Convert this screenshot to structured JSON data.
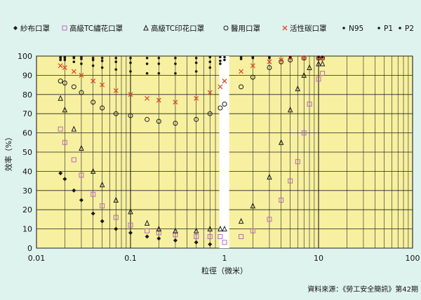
{
  "chart_data": {
    "type": "scatter",
    "x_scale": "log",
    "xlim": [
      0.01,
      100
    ],
    "ylim": [
      0,
      100
    ],
    "xlabel": "粒徑（微米）",
    "ylabel": "效率（%）",
    "x_ticks": [
      "0.01",
      "0.1",
      "1",
      "10",
      "100"
    ],
    "y_ticks": [
      "0",
      "10",
      "20",
      "30",
      "40",
      "50",
      "60",
      "70",
      "80",
      "90",
      "100"
    ],
    "grid": true,
    "legend_placement": "top",
    "source_note": "資料來源：《勞工安全簡訊》第42期",
    "series": [
      {
        "name": "紗布口罩",
        "marker": "diamond",
        "color": "#1a1a1a",
        "x": [
          0.018,
          0.02,
          0.025,
          0.03,
          0.04,
          0.05,
          0.07,
          0.1,
          0.15,
          0.2,
          0.3,
          0.5,
          0.7
        ],
        "y": [
          39,
          36,
          30,
          25,
          18,
          14,
          10,
          8,
          6,
          5,
          4,
          3,
          2
        ]
      },
      {
        "name": "高級TC繡花口罩",
        "marker": "square",
        "color": "#b86ab8",
        "x": [
          0.018,
          0.02,
          0.025,
          0.03,
          0.04,
          0.05,
          0.07,
          0.1,
          0.15,
          0.2,
          0.3,
          0.5,
          0.7,
          0.9,
          1.0,
          1.5,
          2,
          3,
          4,
          5,
          6,
          7,
          8,
          10,
          11
        ],
        "y": [
          62,
          55,
          46,
          38,
          28,
          22,
          16,
          12,
          9,
          8,
          7,
          6,
          6,
          6,
          3,
          6,
          9,
          15,
          25,
          35,
          45,
          60,
          75,
          88,
          91
        ]
      },
      {
        "name": "高級TC印花口罩",
        "marker": "triangle",
        "color": "#1a1a1a",
        "x": [
          0.018,
          0.02,
          0.025,
          0.03,
          0.04,
          0.05,
          0.07,
          0.1,
          0.15,
          0.2,
          0.3,
          0.5,
          0.7,
          0.9,
          1.0,
          1.5,
          2,
          3,
          4,
          5,
          6,
          7,
          8,
          10,
          11
        ],
        "y": [
          78,
          72,
          62,
          52,
          40,
          33,
          25,
          19,
          13,
          10,
          9,
          9,
          10,
          10,
          10,
          14,
          22,
          37,
          55,
          72,
          83,
          90,
          94,
          96,
          96
        ]
      },
      {
        "name": "醫用口罩",
        "marker": "circle",
        "color": "#1a1a1a",
        "x": [
          0.018,
          0.02,
          0.025,
          0.03,
          0.04,
          0.05,
          0.07,
          0.1,
          0.15,
          0.2,
          0.3,
          0.5,
          0.7,
          0.9,
          1.0,
          1.5,
          2,
          3,
          4,
          5,
          7,
          10,
          11
        ],
        "y": [
          87,
          86,
          84,
          81,
          76,
          73,
          70,
          69,
          67,
          66,
          65,
          67,
          70,
          73,
          75,
          84,
          89,
          94,
          97,
          98,
          99,
          99,
          99
        ]
      },
      {
        "name": "活性碳口罩",
        "marker": "cross",
        "color": "#e04a2a",
        "x": [
          0.018,
          0.02,
          0.025,
          0.03,
          0.04,
          0.05,
          0.07,
          0.1,
          0.15,
          0.2,
          0.3,
          0.5,
          0.7,
          0.9,
          1.0,
          1.5,
          2,
          3,
          4,
          5,
          7,
          10,
          11
        ],
        "y": [
          95,
          94,
          92,
          90,
          87,
          85,
          82,
          80,
          78,
          77,
          76,
          78,
          81,
          84,
          87,
          92,
          95,
          97,
          98,
          99,
          99,
          99,
          99
        ]
      },
      {
        "name": "N95",
        "marker": "dot",
        "color": "#1a1a1a",
        "x": [
          0.018,
          0.02,
          0.025,
          0.03,
          0.04,
          0.05,
          0.07,
          0.1,
          0.15,
          0.2,
          0.3,
          0.5,
          0.7,
          0.9,
          1.0,
          1.5,
          2,
          3,
          5,
          10,
          11
        ],
        "y": [
          99,
          99,
          99,
          98.5,
          98,
          97.5,
          97,
          96.5,
          96,
          96,
          96,
          96.5,
          97,
          97.5,
          98,
          98.5,
          99,
          99,
          99.5,
          99.5,
          99.5
        ]
      },
      {
        "name": "P1",
        "marker": "dot",
        "color": "#1a1a1a",
        "x": [
          0.018,
          0.02,
          0.025,
          0.03,
          0.04,
          0.05,
          0.07,
          0.1,
          0.15,
          0.2,
          0.3,
          0.5,
          0.7,
          0.9
        ],
        "y": [
          98,
          98,
          97,
          96,
          95,
          94,
          93,
          92,
          91,
          91,
          91,
          92,
          94,
          96
        ]
      },
      {
        "name": "P2",
        "marker": "dot",
        "color": "#1a1a1a",
        "x": [
          0.018,
          0.02,
          0.025,
          0.03,
          0.04,
          0.05,
          0.07,
          0.1,
          0.15,
          0.2,
          0.3,
          0.5,
          0.7,
          0.9,
          1.0,
          1.5,
          2,
          3,
          5,
          10,
          11
        ],
        "y": [
          99.5,
          99.5,
          99.5,
          99.5,
          99,
          99,
          99,
          99,
          99,
          99,
          99,
          99,
          99.5,
          99.5,
          99.5,
          99.5,
          99.5,
          99.5,
          99.5,
          99.5,
          99.5
        ]
      }
    ]
  }
}
